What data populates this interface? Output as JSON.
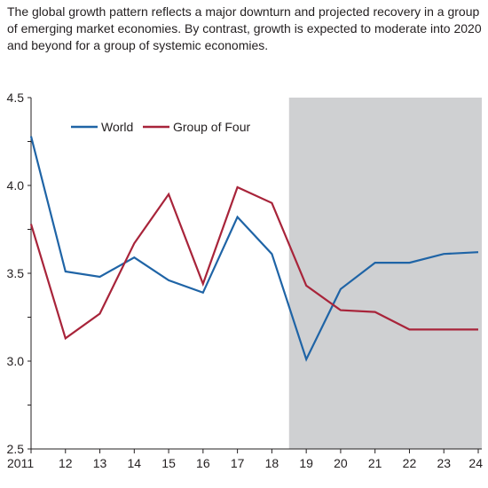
{
  "caption": "The global growth pattern reflects a major downturn and projected recovery in a group of emerging market economies. By contrast, growth is expected to moderate into 2020 and beyond for a group of systemic economies.",
  "colors": {
    "world": "#1f64a6",
    "group_of_four": "#a8243a",
    "projection_shade": "#cfd0d2",
    "axis": "#231f20"
  },
  "chart_data": {
    "type": "line",
    "title": "",
    "xlabel": "",
    "ylabel": "",
    "x": [
      2011,
      2012,
      2013,
      2014,
      2015,
      2016,
      2017,
      2018,
      2019,
      2020,
      2021,
      2022,
      2023,
      2024
    ],
    "x_tick_labels": [
      "2011",
      "12",
      "13",
      "14",
      "15",
      "16",
      "17",
      "18",
      "19",
      "20",
      "21",
      "22",
      "23",
      "24"
    ],
    "ylim": [
      2.5,
      4.5
    ],
    "y_ticks": [
      2.5,
      2.75,
      3.0,
      3.25,
      3.5,
      3.75,
      4.0,
      4.25,
      4.5
    ],
    "y_tick_labels": [
      "2.5",
      "",
      "3.0",
      "",
      "3.5",
      "",
      "4.0",
      "",
      "4.5"
    ],
    "projection_start": 2018.5,
    "grid": false,
    "legend_position": "top-left",
    "series": [
      {
        "name": "World",
        "key": "world",
        "values": [
          4.28,
          3.51,
          3.48,
          3.59,
          3.46,
          3.39,
          3.82,
          3.61,
          3.01,
          3.41,
          3.56,
          3.56,
          3.61,
          3.62
        ]
      },
      {
        "name": "Group of Four",
        "key": "group_of_four",
        "values": [
          3.78,
          3.13,
          3.27,
          3.67,
          3.95,
          3.44,
          3.99,
          3.9,
          3.43,
          3.29,
          3.28,
          3.18,
          3.18,
          3.18
        ]
      }
    ]
  }
}
